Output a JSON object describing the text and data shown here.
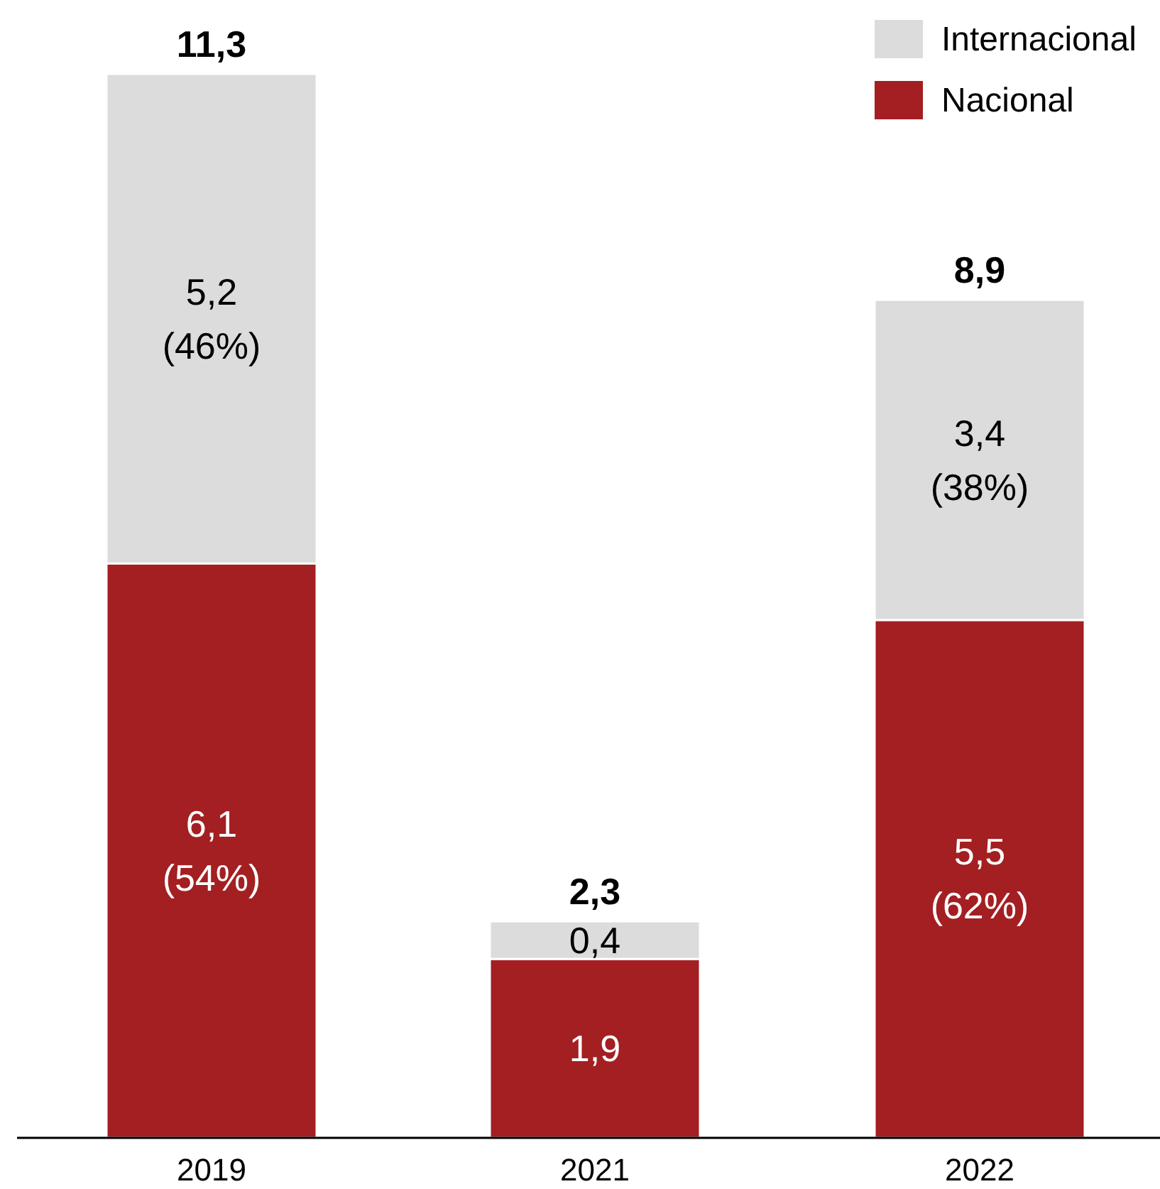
{
  "chart_data": {
    "type": "bar",
    "stacked": true,
    "categories": [
      "2019",
      "2021",
      "2022"
    ],
    "series": [
      {
        "name": "Nacional",
        "color": "#a31f22",
        "values": [
          6.1,
          1.9,
          5.5
        ],
        "value_labels": [
          "6,1\n(54%)",
          "1,9",
          "5,5\n(62%)"
        ]
      },
      {
        "name": "Internacional",
        "color": "#dcdcdc",
        "values": [
          5.2,
          0.4,
          3.4
        ],
        "value_labels": [
          "5,2\n(46%)",
          "0,4",
          "3,4\n(38%)"
        ]
      }
    ],
    "totals": [
      "11,3",
      "2,3",
      "8,9"
    ],
    "legend": "top right"
  }
}
